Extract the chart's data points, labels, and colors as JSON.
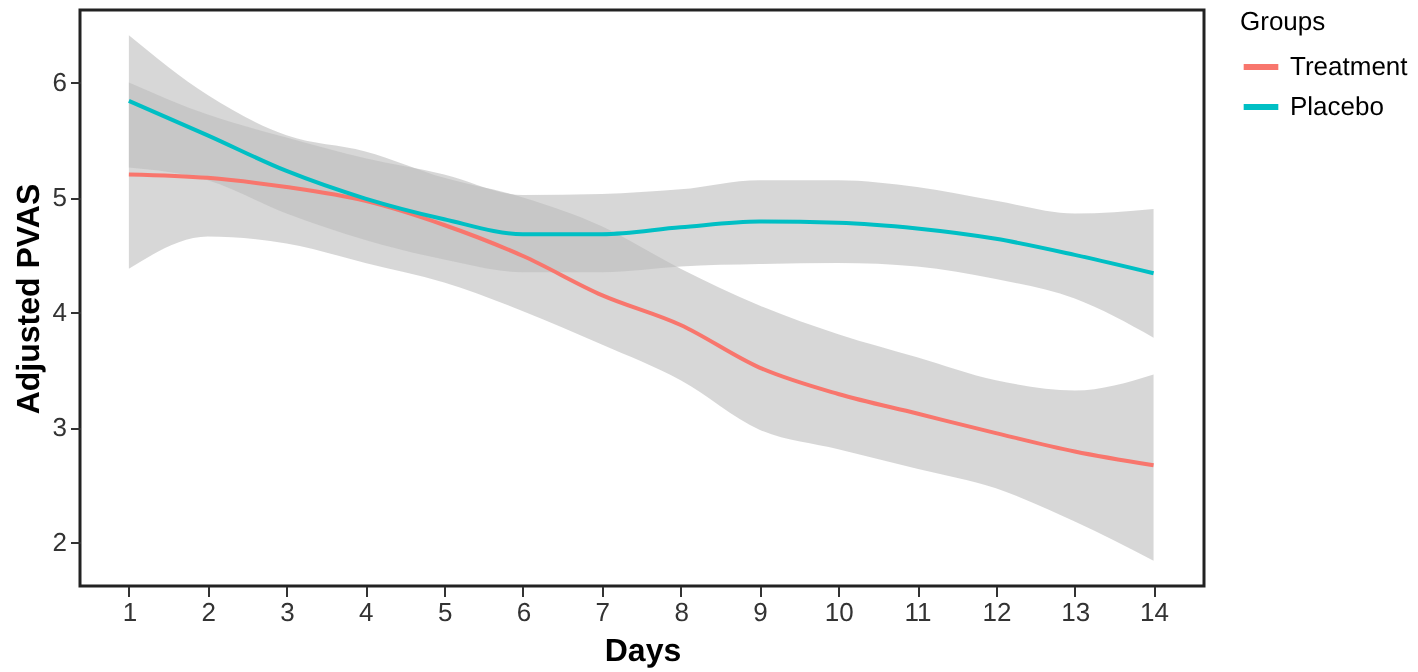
{
  "chart_data": {
    "type": "line",
    "xlabel": "Days",
    "ylabel": "Adjusted PVAS",
    "legend_title": "Groups",
    "legend": "right",
    "grid": false,
    "marker": "none",
    "line_style": "solid",
    "x": [
      1,
      2,
      3,
      4,
      5,
      6,
      7,
      8,
      9,
      10,
      11,
      12,
      13,
      14
    ],
    "xlim": [
      0.38,
      14.64
    ],
    "xticks": [
      1,
      2,
      3,
      4,
      5,
      6,
      7,
      8,
      9,
      10,
      11,
      12,
      13,
      14
    ],
    "ylim": [
      1.62,
      6.63
    ],
    "yticks": [
      2,
      3,
      4,
      5,
      6
    ],
    "series": [
      {
        "name": "Treatment",
        "color": "#f8766d",
        "values": [
          5.2,
          5.17,
          5.09,
          4.97,
          4.76,
          4.49,
          4.15,
          3.89,
          3.52,
          3.29,
          3.12,
          2.95,
          2.79,
          2.67
        ],
        "lower": [
          4.38,
          4.66,
          4.6,
          4.43,
          4.26,
          4.01,
          3.72,
          3.41,
          2.98,
          2.81,
          2.64,
          2.47,
          2.18,
          1.84
        ],
        "upper": [
          6.41,
          5.89,
          5.54,
          5.4,
          5.17,
          5.0,
          4.75,
          4.38,
          4.06,
          3.81,
          3.61,
          3.41,
          3.32,
          3.46
        ]
      },
      {
        "name": "Placebo",
        "color": "#00bfc4",
        "values": [
          5.84,
          5.54,
          5.23,
          4.99,
          4.81,
          4.68,
          4.68,
          4.74,
          4.79,
          4.78,
          4.73,
          4.64,
          4.5,
          4.34
        ],
        "lower": [
          5.26,
          5.15,
          4.86,
          4.63,
          4.46,
          4.35,
          4.35,
          4.4,
          4.42,
          4.43,
          4.4,
          4.29,
          4.12,
          3.78
        ],
        "upper": [
          6.0,
          5.72,
          5.52,
          5.34,
          5.2,
          5.02,
          5.03,
          5.07,
          5.15,
          5.15,
          5.09,
          4.97,
          4.86,
          4.9
        ]
      }
    ]
  }
}
